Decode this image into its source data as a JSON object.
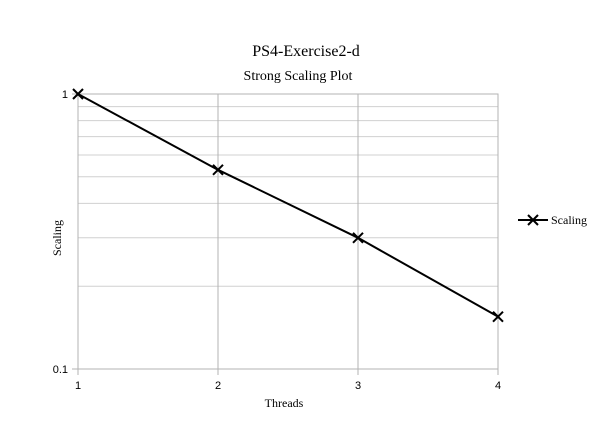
{
  "chart_data": {
    "type": "line",
    "title": "PS4-Exercise2-d",
    "subtitle": "Strong Scaling Plot",
    "xlabel": "Threads",
    "ylabel": "Scaling",
    "x": [
      1,
      2,
      3,
      4
    ],
    "x_tick_labels": [
      "1",
      "2",
      "3",
      "4"
    ],
    "xlim": [
      1,
      4
    ],
    "y_scale": "log",
    "ylim": [
      0.1,
      1
    ],
    "y_tick_labels": [
      "1",
      "0.1"
    ],
    "grid": true,
    "legend_position": "right",
    "series": [
      {
        "name": "Scaling",
        "values": [
          1.0,
          0.53,
          0.3,
          0.155
        ],
        "color": "#000000",
        "marker": "x"
      }
    ]
  }
}
